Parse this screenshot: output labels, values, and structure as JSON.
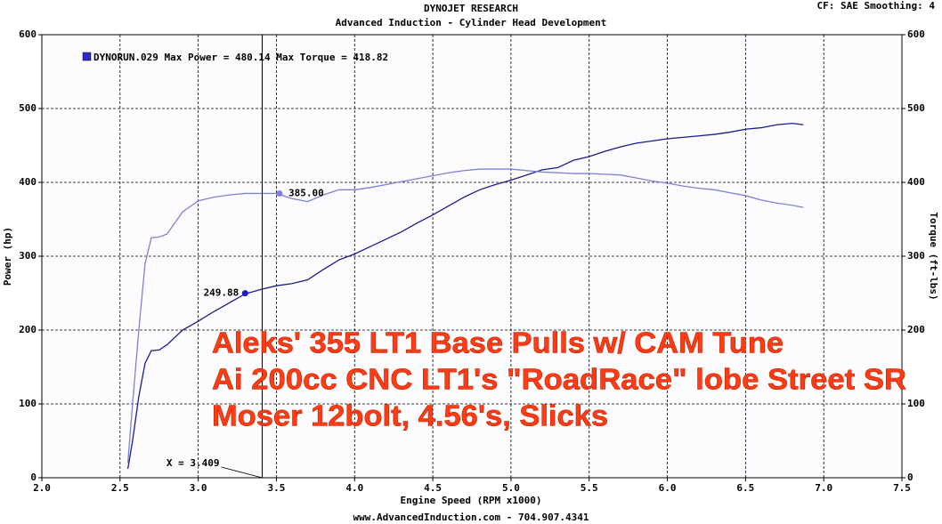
{
  "chart_data": {
    "type": "line",
    "title": "DYNOJET RESEARCH",
    "subtitle": "Advanced Induction - Cylinder Head Development",
    "corner_note": "CF: SAE  Smoothing: 4",
    "legend": "DYNORUN.029 Max Power = 480.14     Max Torque = 418.82",
    "x_label": "Engine Speed (RPM x1000)",
    "y_label": "Power (hp)",
    "y2_label": "Torque (ft-lbs)",
    "footer": "www.AdvancedInduction.com  -  704.907.4341",
    "overlay_lines": [
      "Aleks' 355 LT1 Base Pulls w/ CAM Tune",
      "Ai 200cc CNC LT1's \"RoadRace\" lobe Street SR",
      "Moser 12bolt, 4.56's, Slicks"
    ],
    "grid": true,
    "xlim": [
      2.0,
      7.5
    ],
    "xticks": [
      {
        "value": 2,
        "label": "2.0"
      },
      {
        "value": 2.5,
        "label": "2.5"
      },
      {
        "value": 3,
        "label": "3.0"
      },
      {
        "value": 3.5,
        "label": "3.5"
      },
      {
        "value": 4,
        "label": "4.0"
      },
      {
        "value": 4.5,
        "label": "4.5"
      },
      {
        "value": 5,
        "label": "5.0"
      },
      {
        "value": 5.5,
        "label": "5.5"
      },
      {
        "value": 6,
        "label": "6.0"
      },
      {
        "value": 6.5,
        "label": "6.5"
      },
      {
        "value": 7,
        "label": "7.0"
      },
      {
        "value": 7.5,
        "label": "7.5"
      }
    ],
    "ylim": [
      0,
      600
    ],
    "yticks": [
      0,
      100,
      200,
      300,
      400,
      500,
      600
    ],
    "y2lim": [
      0,
      600
    ],
    "y2ticks": [
      0,
      100,
      200,
      300,
      400,
      500,
      600
    ],
    "x": [
      2.55,
      2.58,
      2.62,
      2.66,
      2.7,
      2.75,
      2.8,
      2.9,
      3.0,
      3.1,
      3.2,
      3.3,
      3.4,
      3.5,
      3.6,
      3.7,
      3.8,
      3.9,
      4.0,
      4.1,
      4.2,
      4.3,
      4.4,
      4.5,
      4.6,
      4.7,
      4.8,
      4.9,
      5.0,
      5.1,
      5.2,
      5.3,
      5.4,
      5.5,
      5.6,
      5.7,
      5.8,
      5.9,
      6.0,
      6.1,
      6.2,
      6.3,
      6.4,
      6.5,
      6.6,
      6.7,
      6.8,
      6.87
    ],
    "series": [
      {
        "color": "#1c1c8a",
        "values": [
          12,
          50,
          110,
          155,
          172,
          173,
          180,
          200,
          212,
          225,
          237,
          249,
          255,
          260,
          263,
          268,
          282,
          295,
          303,
          313,
          323,
          333,
          345,
          356,
          368,
          380,
          390,
          397,
          403,
          410,
          417,
          420,
          430,
          435,
          442,
          448,
          453,
          456,
          459,
          461,
          463,
          465,
          468,
          472,
          474,
          478,
          480,
          478
        ]
      },
      {
        "color": "#8080d4",
        "axis": "y2",
        "values": [
          20,
          100,
          200,
          290,
          325,
          326,
          330,
          360,
          375,
          380,
          383,
          385,
          385,
          385,
          378,
          374,
          383,
          390,
          390,
          393,
          397,
          401,
          405,
          409,
          413,
          416,
          418,
          418,
          418,
          416,
          414,
          413,
          412,
          412,
          411,
          410,
          406,
          402,
          399,
          395,
          392,
          390,
          386,
          382,
          376,
          372,
          369,
          366
        ]
      }
    ],
    "markers": [
      {
        "x": 3.3,
        "value": 249.88,
        "label": "249.88",
        "color": "#1c1cc8"
      },
      {
        "x": 3.52,
        "value": 385.0,
        "label": "385.00",
        "color": "#8080e0",
        "axis": "y2"
      }
    ],
    "cursor": {
      "value": 3.409,
      "label": "X = 3.409"
    }
  }
}
